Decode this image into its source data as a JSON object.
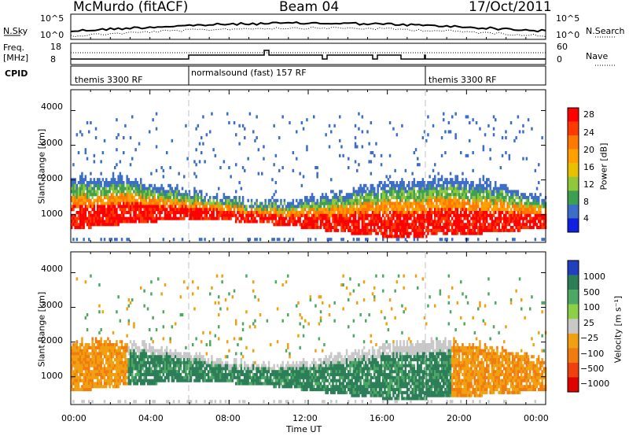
{
  "header": {
    "station": "McMurdo (fitACF)",
    "beam": "Beam 04",
    "date": "17/Oct/2011"
  },
  "top_panels": {
    "nsky_label": "N.Sky",
    "nsearch_label": "N.Search",
    "nsky_ticks": [
      "10^5",
      "10^0"
    ],
    "nsearch_ticks": [
      "10^5",
      "10^0"
    ],
    "freq_label": "Freq.",
    "freq_unit": "[MHz]",
    "freq_ticks": [
      "18",
      "8"
    ],
    "nave_label": "Nave",
    "nave_ticks": [
      "60",
      "0"
    ],
    "cpid_label": "CPID",
    "cpid_segments": [
      {
        "label": "themis 3300 RF"
      },
      {
        "label": "normalsound (fast) 157 RF"
      },
      {
        "label": "themis 3300 RF"
      }
    ]
  },
  "chart_data": [
    {
      "type": "heatmap",
      "name": "power-panel",
      "ylabel": "Slant Range [km]",
      "yticks": [
        "1000",
        "2000",
        "3000",
        "4000"
      ],
      "ylim": [
        200,
        4600
      ],
      "xlim": [
        0,
        24
      ],
      "colorbar_label": "Power [dB]",
      "colorbar_ticks": [
        "28",
        "24",
        "20",
        "16",
        "12",
        "8",
        "4"
      ],
      "colors": [
        "#ff0000",
        "#ff3a00",
        "#ff7800",
        "#ffa000",
        "#e8c000",
        "#90c83c",
        "#3ca050",
        "#3c6ec8",
        "#1020e0"
      ]
    },
    {
      "type": "heatmap",
      "name": "velocity-panel",
      "ylabel": "Slant Range [km]",
      "yticks": [
        "1000",
        "2000",
        "3000",
        "4000"
      ],
      "ylim": [
        200,
        4600
      ],
      "xlim": [
        0,
        24
      ],
      "xlabel": "Time UT",
      "xticks": [
        "00:00",
        "04:00",
        "08:00",
        "12:00",
        "16:00",
        "20:00",
        "00:00"
      ],
      "colorbar_label": "Velocity [m s⁻¹]",
      "colorbar_ticks": [
        "1000",
        "500",
        "100",
        "25",
        "−25",
        "−100",
        "−500",
        "−1000"
      ],
      "colors": [
        "#2040c0",
        "#2c7e58",
        "#4ca862",
        "#8cd048",
        "#c8c8c8",
        "#f0a010",
        "#f07c10",
        "#f04010",
        "#e00000"
      ]
    }
  ]
}
